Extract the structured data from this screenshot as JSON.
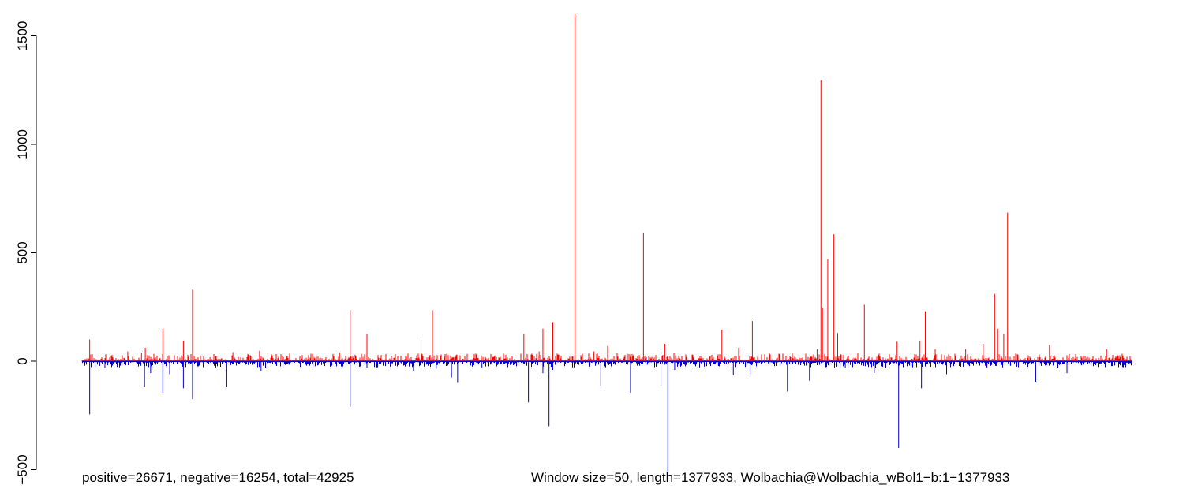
{
  "annotations": {
    "left": "positive=26671, negative=16254, total=42925",
    "right": "Window size=50, length=1377933, Wolbachia@Wolbachia_wBol1−b:1−1377933"
  },
  "colors": {
    "positive": "#ff0000",
    "negative": "#0000cc",
    "axis": "#000000",
    "background": "#ffffff"
  },
  "chart_data": {
    "type": "bar",
    "title": "",
    "xlabel": "",
    "ylabel": "",
    "ylim": [
      -500,
      1600
    ],
    "xlim": [
      0,
      1377933
    ],
    "yticks": [
      -500,
      0,
      500,
      1000,
      1500
    ],
    "ytick_labels": [
      "−500",
      "0",
      "500",
      "1000",
      "1500"
    ],
    "grid": false,
    "legend": "none",
    "window_size": 50,
    "series": [
      {
        "name": "positive",
        "points": [
          {
            "x": 10000,
            "y": 100
          },
          {
            "x": 60000,
            "y": 45
          },
          {
            "x": 78000,
            "y": 40
          },
          {
            "x": 83000,
            "y": 62
          },
          {
            "x": 106000,
            "y": 150
          },
          {
            "x": 133000,
            "y": 95
          },
          {
            "x": 145000,
            "y": 330
          },
          {
            "x": 168000,
            "y": 18
          },
          {
            "x": 198000,
            "y": 42
          },
          {
            "x": 218000,
            "y": 28
          },
          {
            "x": 233000,
            "y": 48
          },
          {
            "x": 338000,
            "y": 40
          },
          {
            "x": 352000,
            "y": 235
          },
          {
            "x": 374000,
            "y": 125
          },
          {
            "x": 445000,
            "y": 100
          },
          {
            "x": 460000,
            "y": 235
          },
          {
            "x": 580000,
            "y": 125
          },
          {
            "x": 600000,
            "y": 45
          },
          {
            "x": 605000,
            "y": 150
          },
          {
            "x": 618000,
            "y": 180
          },
          {
            "x": 647000,
            "y": 1600
          },
          {
            "x": 672000,
            "y": 45
          },
          {
            "x": 690000,
            "y": 70
          },
          {
            "x": 737000,
            "y": 590
          },
          {
            "x": 760000,
            "y": 45
          },
          {
            "x": 765000,
            "y": 80
          },
          {
            "x": 840000,
            "y": 145
          },
          {
            "x": 862000,
            "y": 62
          },
          {
            "x": 880000,
            "y": 185
          },
          {
            "x": 965000,
            "y": 55
          },
          {
            "x": 970000,
            "y": 1295
          },
          {
            "x": 972000,
            "y": 245
          },
          {
            "x": 979000,
            "y": 470
          },
          {
            "x": 987000,
            "y": 585
          },
          {
            "x": 992000,
            "y": 130
          },
          {
            "x": 1027000,
            "y": 260
          },
          {
            "x": 1070000,
            "y": 90
          },
          {
            "x": 1100000,
            "y": 95
          },
          {
            "x": 1107000,
            "y": 230
          },
          {
            "x": 1120000,
            "y": 55
          },
          {
            "x": 1160000,
            "y": 55
          },
          {
            "x": 1183000,
            "y": 80
          },
          {
            "x": 1198000,
            "y": 310
          },
          {
            "x": 1202000,
            "y": 150
          },
          {
            "x": 1210000,
            "y": 125
          },
          {
            "x": 1215000,
            "y": 685
          },
          {
            "x": 1270000,
            "y": 75
          },
          {
            "x": 1345000,
            "y": 55
          }
        ]
      },
      {
        "name": "negative",
        "points": [
          {
            "x": 10000,
            "y": -245
          },
          {
            "x": 30000,
            "y": -30
          },
          {
            "x": 82000,
            "y": -120
          },
          {
            "x": 90000,
            "y": -55
          },
          {
            "x": 106000,
            "y": -145
          },
          {
            "x": 115000,
            "y": -60
          },
          {
            "x": 133000,
            "y": -125
          },
          {
            "x": 145000,
            "y": -175
          },
          {
            "x": 190000,
            "y": -120
          },
          {
            "x": 235000,
            "y": -45
          },
          {
            "x": 352000,
            "y": -210
          },
          {
            "x": 374000,
            "y": -30
          },
          {
            "x": 435000,
            "y": -45
          },
          {
            "x": 465000,
            "y": -35
          },
          {
            "x": 485000,
            "y": -75
          },
          {
            "x": 493000,
            "y": -100
          },
          {
            "x": 525000,
            "y": -30
          },
          {
            "x": 586000,
            "y": -190
          },
          {
            "x": 605000,
            "y": -55
          },
          {
            "x": 613000,
            "y": -300
          },
          {
            "x": 618000,
            "y": -40
          },
          {
            "x": 681000,
            "y": -115
          },
          {
            "x": 720000,
            "y": -145
          },
          {
            "x": 760000,
            "y": -110
          },
          {
            "x": 769000,
            "y": -520
          },
          {
            "x": 778000,
            "y": -40
          },
          {
            "x": 855000,
            "y": -65
          },
          {
            "x": 877000,
            "y": -60
          },
          {
            "x": 926000,
            "y": -140
          },
          {
            "x": 955000,
            "y": -90
          },
          {
            "x": 1002000,
            "y": -30
          },
          {
            "x": 1040000,
            "y": -55
          },
          {
            "x": 1072000,
            "y": -400
          },
          {
            "x": 1102000,
            "y": -125
          },
          {
            "x": 1135000,
            "y": -60
          },
          {
            "x": 1188000,
            "y": -30
          },
          {
            "x": 1252000,
            "y": -95
          },
          {
            "x": 1293000,
            "y": -55
          }
        ]
      }
    ]
  }
}
